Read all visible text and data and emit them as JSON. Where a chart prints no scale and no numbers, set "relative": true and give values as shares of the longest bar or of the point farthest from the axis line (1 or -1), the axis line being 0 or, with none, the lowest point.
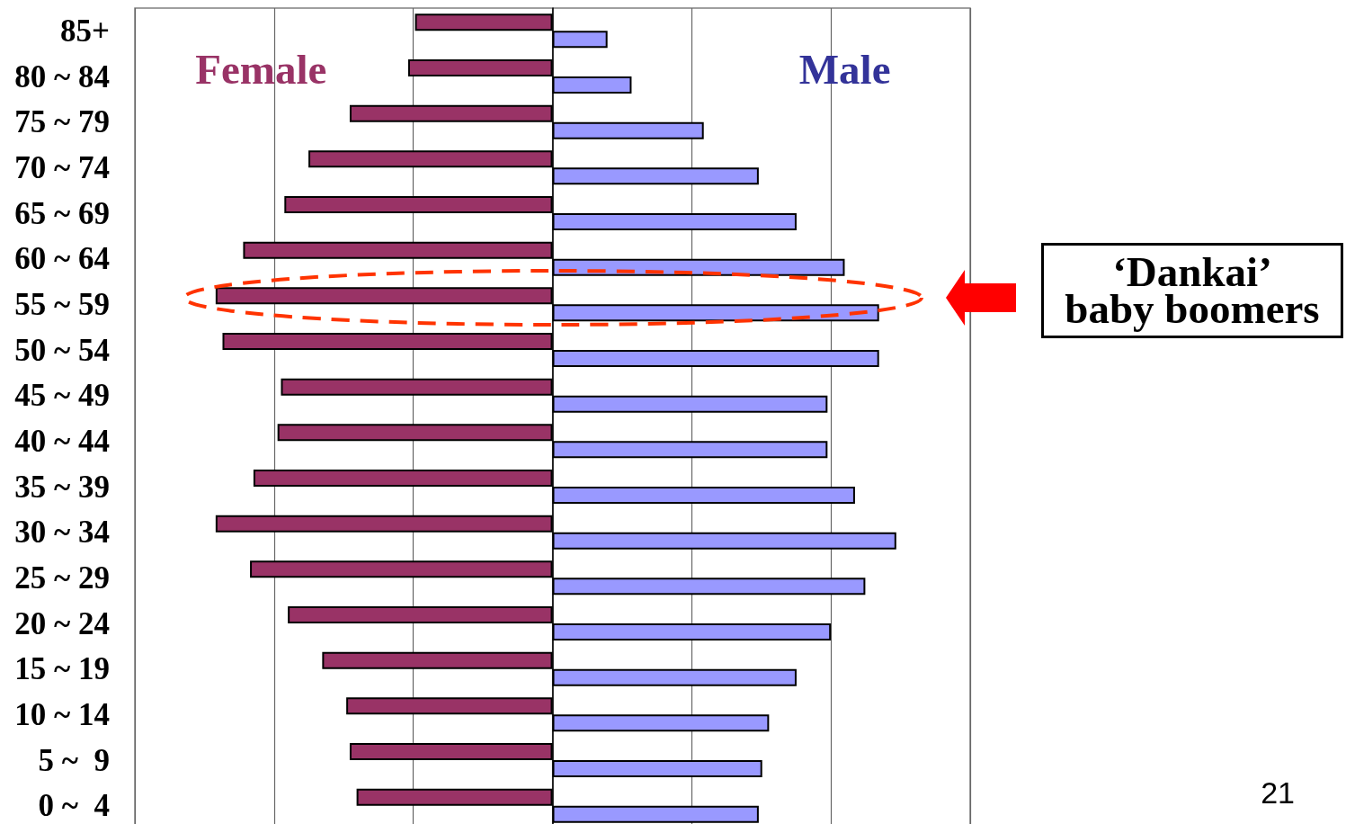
{
  "chart_data": {
    "type": "bar",
    "orientation": "horizontal",
    "relative": true,
    "grid": "x",
    "tick_labels": "y",
    "categories": [
      "85+",
      "80 ~ 84",
      "75 ~ 79",
      "70 ~ 74",
      "65 ~ 69",
      "60 ~ 64",
      "55 ~ 59",
      "50 ~ 54",
      "45 ~ 49",
      "40 ~ 44",
      "35 ~ 39",
      "30 ~ 34",
      "25 ~ 29",
      "20 ~ 24",
      "15 ~ 19",
      "10 ~ 14",
      "5 ~  9",
      "0 ~  4"
    ],
    "series": [
      {
        "name": "Female",
        "color": "#993366",
        "values": [
          -0.4,
          -0.42,
          -0.59,
          -0.71,
          -0.78,
          -0.9,
          -0.98,
          -0.96,
          -0.79,
          -0.8,
          -0.87,
          -0.98,
          -0.88,
          -0.77,
          -0.67,
          -0.6,
          -0.59,
          -0.57
        ]
      },
      {
        "name": "Male",
        "color": "#9999ff",
        "values": [
          0.16,
          0.23,
          0.44,
          0.6,
          0.71,
          0.85,
          0.95,
          0.95,
          0.8,
          0.8,
          0.88,
          1,
          0.91,
          0.81,
          0.71,
          0.63,
          0.61,
          0.6
        ]
      }
    ],
    "annotations": [
      "‘Dankai’\nbaby boomers",
      "21"
    ]
  }
}
